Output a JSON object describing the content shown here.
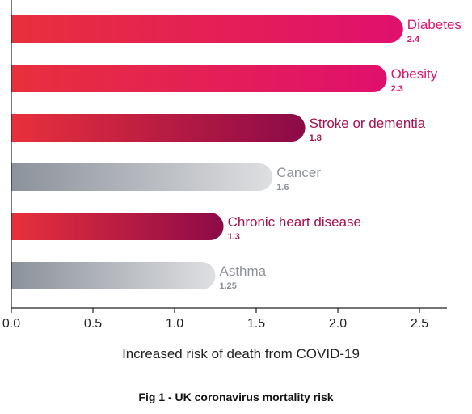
{
  "chart_data": {
    "type": "bar",
    "orientation": "horizontal",
    "categories": [
      "Diabetes",
      "Obesity",
      "Stroke or dementia",
      "Cancer",
      "Chronic heart disease",
      "Asthma"
    ],
    "values": [
      2.4,
      2.3,
      1.8,
      1.6,
      1.3,
      1.25
    ],
    "value_labels": [
      "2.4",
      "2.3",
      "1.8",
      "1.6",
      "1.3",
      "1.25"
    ],
    "xlabel": "Increased risk of death from COVID-19",
    "xlim": [
      0,
      2.65
    ],
    "xticks": [
      "0.0",
      "0.5",
      "1.0",
      "1.5",
      "2.0",
      "2.5"
    ],
    "grid": false,
    "bar_styles": [
      "pink",
      "pink",
      "crimson",
      "gray",
      "crimson",
      "gray"
    ],
    "colors": {
      "pink": {
        "start": "#e8303c",
        "end": "#e0106e",
        "text": "#dc1570"
      },
      "crimson": {
        "start": "#e8303c",
        "end": "#8c0a48",
        "text": "#a3104f"
      },
      "gray": {
        "start": "#8c929b",
        "end": "#dedfe1",
        "text": "#8d9199"
      }
    }
  },
  "caption": "Fig 1 - UK coronavirus mortality risk"
}
